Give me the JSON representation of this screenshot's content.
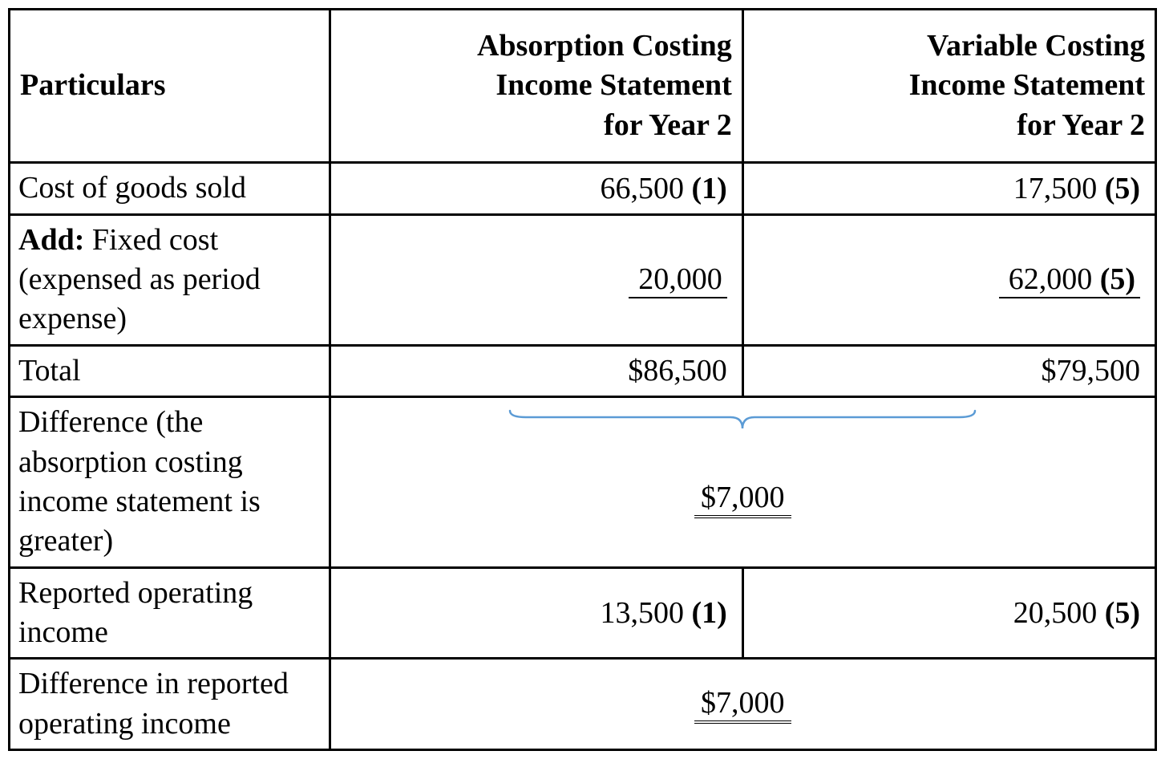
{
  "table": {
    "type": "table",
    "border_color": "#000000",
    "background_color": "#ffffff",
    "text_color": "#000000",
    "font_family": "Times New Roman",
    "base_fontsize_pt": 28,
    "brace_color": "#5b9bd5",
    "columns": [
      {
        "header": "Particulars",
        "align": "left"
      },
      {
        "header": "Absorption Costing\nIncome Statement\nfor Year 2",
        "align": "right"
      },
      {
        "header": "Variable Costing\nIncome Statement\nfor Year 2",
        "align": "right"
      }
    ],
    "rows": {
      "cogs": {
        "label": "Cost of goods sold",
        "absorption": {
          "value": "66,500",
          "ref": "(1)"
        },
        "variable": {
          "value": "17,500",
          "ref": "(5)"
        }
      },
      "fixed_cost": {
        "label_prefix": "Add:",
        "label": " Fixed cost (expensed as period expense)",
        "absorption": {
          "value": "20,000",
          "ref": "",
          "underline": true
        },
        "variable": {
          "value": "62,000",
          "ref": "(5)",
          "underline": true
        }
      },
      "total": {
        "label": "Total",
        "absorption": {
          "value": "$86,500"
        },
        "variable": {
          "value": "$79,500"
        }
      },
      "difference_expense": {
        "label": "  Difference (the absorption costing income statement is greater)",
        "merged_value": "$7,000",
        "double_underline": true,
        "brace": true
      },
      "operating_income": {
        "label": "Reported operating income",
        "absorption": {
          "value": "13,500",
          "ref": "(1)"
        },
        "variable": {
          "value": "20,500",
          "ref": "(5)"
        }
      },
      "difference_income": {
        "label": "Difference in reported operating income",
        "merged_value": "$7,000",
        "double_underline": true
      }
    }
  }
}
